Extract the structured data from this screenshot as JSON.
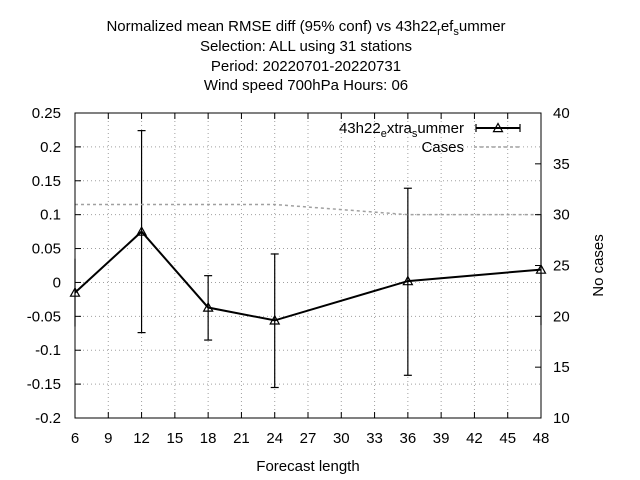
{
  "chart_data": {
    "type": "line",
    "title_lines": [
      "Normalized mean RMSE diff (95% conf) vs 43h22_ref_summer",
      "Selection: ALL using    31 stations",
      "Period: 20220701-20220731",
      "Wind speed 700hPa   Hours:  06"
    ],
    "xlabel": "Forecast length",
    "ylabel": "",
    "y2label": "No cases",
    "xlim": [
      6,
      48
    ],
    "ylim": [
      -0.2,
      0.25
    ],
    "y2lim": [
      10,
      40
    ],
    "x_ticks": [
      6,
      9,
      12,
      15,
      18,
      21,
      24,
      27,
      30,
      33,
      36,
      39,
      42,
      45,
      48
    ],
    "y_ticks": [
      -0.2,
      -0.15,
      -0.1,
      -0.05,
      0,
      0.05,
      0.1,
      0.15,
      0.2,
      0.25
    ],
    "y_tick_labels": [
      "-0.2",
      "-0.15",
      "-0.1",
      "-0.05",
      "0",
      "0.05",
      "0.1",
      "0.15",
      "0.2",
      "0.25"
    ],
    "y2_ticks": [
      10,
      15,
      20,
      25,
      30,
      35,
      40
    ],
    "grid": true,
    "legend_position": "top-right",
    "series": [
      {
        "name": "43h22_extra_summer",
        "axis": "y",
        "style": "errorbar-line",
        "color": "#000000",
        "x": [
          6,
          12,
          18,
          24,
          36,
          48
        ],
        "y": [
          -0.015,
          0.075,
          -0.037,
          -0.056,
          0.002,
          0.019
        ],
        "err_low": [
          -0.065,
          -0.074,
          -0.085,
          -0.155,
          -0.137,
          -0.063
        ],
        "err_high": [
          0.035,
          0.224,
          0.01,
          0.042,
          0.139,
          0.101
        ]
      },
      {
        "name": "Cases",
        "axis": "y2",
        "style": "dashed",
        "color": "#a0a0a0",
        "x": [
          6,
          12,
          18,
          24,
          30,
          36,
          42,
          48
        ],
        "y": [
          31,
          31,
          31,
          31,
          30.5,
          30,
          30,
          30
        ]
      }
    ]
  }
}
